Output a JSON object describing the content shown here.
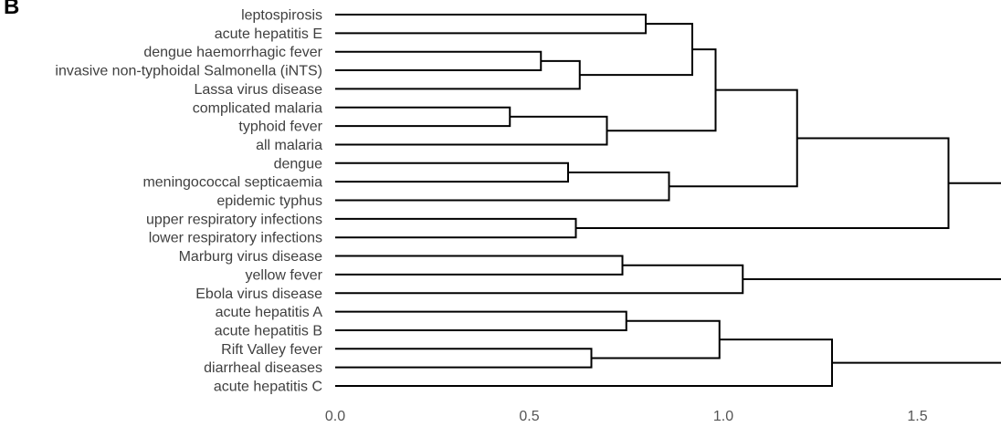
{
  "panel_label": "B",
  "chart_data": {
    "type": "dendrogram",
    "xlabel": "",
    "ylabel": "",
    "grid": false,
    "xlim": [
      0,
      1.75
    ],
    "x_ticks": [
      {
        "value": 0.0,
        "label": "0.0"
      },
      {
        "value": 0.5,
        "label": "0.5"
      },
      {
        "value": 1.0,
        "label": "1.0"
      },
      {
        "value": 1.5,
        "label": "1.5"
      }
    ],
    "leaves": [
      "leptospirosis",
      "acute hepatitis E",
      "dengue haemorrhagic fever",
      "invasive non-typhoidal Salmonella (iNTS)",
      "Lassa virus disease",
      "complicated malaria",
      "typhoid fever",
      "all malaria",
      "dengue",
      "meningococcal septicaemia",
      "epidemic typhus",
      "upper respiratory infections",
      "lower respiratory infections",
      "Marburg virus disease",
      "yellow fever",
      "Ebola virus disease",
      "acute hepatitis A",
      "acute hepatitis B",
      "Rift Valley fever",
      "diarrheal diseases",
      "acute hepatitis C"
    ],
    "merges": [
      {
        "id": "m1",
        "children": [
          "L0",
          "L1"
        ],
        "height": 0.8
      },
      {
        "id": "m2",
        "children": [
          "L2",
          "L3"
        ],
        "height": 0.53
      },
      {
        "id": "m3",
        "children": [
          "m2",
          "L4"
        ],
        "height": 0.63
      },
      {
        "id": "m4",
        "children": [
          "m1",
          "m3"
        ],
        "height": 0.92
      },
      {
        "id": "m5",
        "children": [
          "L5",
          "L6"
        ],
        "height": 0.45
      },
      {
        "id": "m6",
        "children": [
          "m5",
          "L7"
        ],
        "height": 0.7
      },
      {
        "id": "m7",
        "children": [
          "m4",
          "m6"
        ],
        "height": 0.98
      },
      {
        "id": "m8",
        "children": [
          "L8",
          "L9"
        ],
        "height": 0.6
      },
      {
        "id": "m9",
        "children": [
          "m8",
          "L10"
        ],
        "height": 0.86
      },
      {
        "id": "m10",
        "children": [
          "m7",
          "m9"
        ],
        "height": 1.19
      },
      {
        "id": "m11",
        "children": [
          "L11",
          "L12"
        ],
        "height": 0.62
      },
      {
        "id": "m12",
        "children": [
          "m10",
          "m11"
        ],
        "height": 1.58
      },
      {
        "id": "m13",
        "children": [
          "L13",
          "L14"
        ],
        "height": 0.74
      },
      {
        "id": "m14",
        "children": [
          "m13",
          "L15"
        ],
        "height": 1.05
      },
      {
        "id": "m15",
        "children": [
          "m12",
          "m14"
        ],
        "height": 1.75
      },
      {
        "id": "m16",
        "children": [
          "L16",
          "L17"
        ],
        "height": 0.75
      },
      {
        "id": "m17",
        "children": [
          "L18",
          "L19"
        ],
        "height": 0.66
      },
      {
        "id": "m18",
        "children": [
          "m16",
          "m17"
        ],
        "height": 0.99
      },
      {
        "id": "m19",
        "children": [
          "m18",
          "L20"
        ],
        "height": 1.28
      },
      {
        "id": "m20",
        "children": [
          "m15",
          "m19"
        ],
        "height": 1.8
      }
    ]
  }
}
